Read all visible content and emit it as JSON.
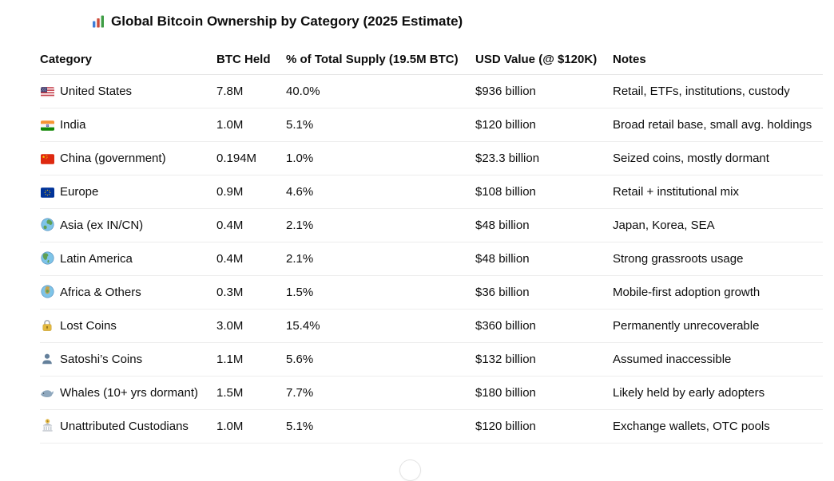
{
  "title": "Global Bitcoin Ownership by Category (2025 Estimate)",
  "title_icon": "bar-chart",
  "colors": {
    "text": "#0d0d0d",
    "background": "#ffffff",
    "row_divider": "#ededed",
    "header_divider": "#e4e4e4"
  },
  "table": {
    "headers": [
      "Category",
      "BTC Held",
      "% of Total Supply (19.5M BTC)",
      "USD Value (@ $120K)",
      "Notes"
    ],
    "rows": [
      {
        "icon": "flag-us",
        "category": "United States",
        "btc_held": "7.8M",
        "pct_supply": "40.0%",
        "usd_value": "$936 billion",
        "notes": "Retail, ETFs, institutions, custody"
      },
      {
        "icon": "flag-in",
        "category": "India",
        "btc_held": "1.0M",
        "pct_supply": "5.1%",
        "usd_value": "$120 billion",
        "notes": "Broad retail base, small avg. holdings"
      },
      {
        "icon": "flag-cn",
        "category": "China (government)",
        "btc_held": "0.194M",
        "pct_supply": "1.0%",
        "usd_value": "$23.3 billion",
        "notes": "Seized coins, mostly dormant"
      },
      {
        "icon": "flag-eu",
        "category": "Europe",
        "btc_held": "0.9M",
        "pct_supply": "4.6%",
        "usd_value": "$108 billion",
        "notes": "Retail + institutional mix"
      },
      {
        "icon": "globe-asia",
        "category": "Asia (ex IN/CN)",
        "btc_held": "0.4M",
        "pct_supply": "2.1%",
        "usd_value": "$48 billion",
        "notes": "Japan, Korea, SEA"
      },
      {
        "icon": "globe-americas",
        "category": "Latin America",
        "btc_held": "0.4M",
        "pct_supply": "2.1%",
        "usd_value": "$48 billion",
        "notes": "Strong grassroots usage"
      },
      {
        "icon": "globe-africa",
        "category": "Africa & Others",
        "btc_held": "0.3M",
        "pct_supply": "1.5%",
        "usd_value": "$36 billion",
        "notes": "Mobile-first adoption growth"
      },
      {
        "icon": "lock",
        "category": "Lost Coins",
        "btc_held": "3.0M",
        "pct_supply": "15.4%",
        "usd_value": "$360 billion",
        "notes": "Permanently unrecoverable"
      },
      {
        "icon": "bust",
        "category": "Satoshi’s Coins",
        "btc_held": "1.1M",
        "pct_supply": "5.6%",
        "usd_value": "$132 billion",
        "notes": "Assumed inaccessible"
      },
      {
        "icon": "whale",
        "category": "Whales (10+ yrs dormant)",
        "btc_held": "1.5M",
        "pct_supply": "7.7%",
        "usd_value": "$180 billion",
        "notes": "Likely held by early adopters"
      },
      {
        "icon": "bank",
        "category": "Unattributed Custodians",
        "btc_held": "1.0M",
        "pct_supply": "5.1%",
        "usd_value": "$120 billion",
        "notes": "Exchange wallets, OTC pools"
      }
    ]
  }
}
